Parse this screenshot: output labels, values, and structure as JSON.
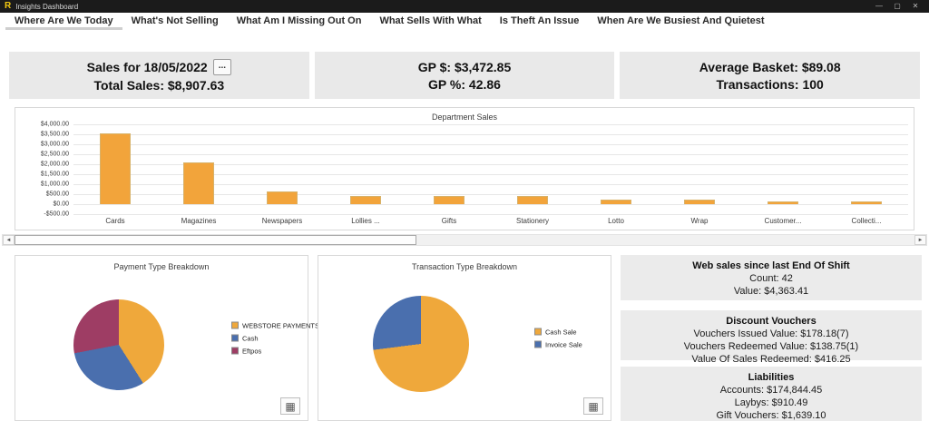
{
  "window": {
    "title": "Insights Dashboard",
    "logo": "R",
    "minimize": "—",
    "maximize": "▢",
    "close": "✕"
  },
  "tabs": [
    {
      "label": "Where Are We Today",
      "selected": true
    },
    {
      "label": "What's Not Selling",
      "selected": false
    },
    {
      "label": "What Am I Missing Out On",
      "selected": false
    },
    {
      "label": "What Sells With What",
      "selected": false
    },
    {
      "label": "Is Theft An Issue",
      "selected": false
    },
    {
      "label": "When Are We Busiest And Quietest",
      "selected": false
    }
  ],
  "summary_cards": [
    {
      "line1": "Sales for 18/05/2022",
      "menu_button": "...",
      "line2": "Total Sales: $8,907.63"
    },
    {
      "line1": "GP $: $3,472.85",
      "line2": "GP %: 42.86"
    },
    {
      "line1": "Average Basket: $89.08",
      "line2": "Transactions: 100"
    }
  ],
  "chart_data": [
    {
      "type": "bar",
      "title": "Department Sales",
      "categories": [
        "Cards",
        "Magazines",
        "Newspapers",
        "Lollies ...",
        "Gifts",
        "Stationery",
        "Lotto",
        "Wrap",
        "Customer...",
        "Collecti..."
      ],
      "values": [
        3550,
        2080,
        650,
        430,
        400,
        400,
        210,
        230,
        130,
        130
      ],
      "xlabel": "",
      "ylabel": "",
      "ylim": [
        -500,
        4000
      ],
      "ytick_step": 500,
      "ytick_labels": [
        "$4,000.00",
        "$3,500.00",
        "$3,000.00",
        "$2,500.00",
        "$2,000.00",
        "$1,500.00",
        "$1,000.00",
        "$500.00",
        "$0.00",
        "-$500.00"
      ],
      "bar_color": "#F2A43B",
      "grid": true,
      "legend": false
    },
    {
      "type": "pie",
      "title": "Payment Type Breakdown",
      "legend_position": "right",
      "slices": [
        {
          "label": "WEBSTORE PAYMENTS",
          "percent": 41,
          "color": "#EFA83B"
        },
        {
          "label": "Cash",
          "percent": 31,
          "color": "#4A6FAE"
        },
        {
          "label": "Eftpos",
          "percent": 28,
          "color": "#9E3D64"
        }
      ]
    },
    {
      "type": "pie",
      "title": "Transaction Type Breakdown",
      "legend_position": "right",
      "slices": [
        {
          "label": "Cash Sale",
          "percent": 73,
          "color": "#EFA83B"
        },
        {
          "label": "Invoice Sale",
          "percent": 27,
          "color": "#4A6FAE"
        }
      ]
    }
  ],
  "right_panels": [
    {
      "title": "Web sales since last End Of Shift",
      "lines": [
        "Count:  42",
        "Value:  $4,363.41"
      ]
    },
    {
      "title": "Discount Vouchers",
      "lines": [
        "Vouchers Issued Value: $178.18(7)",
        "Vouchers Redeemed Value: $138.75(1)",
        "Value Of Sales Redeemed:  $416.25"
      ]
    },
    {
      "title": "Liabilities",
      "lines": [
        "Accounts:  $174,844.45",
        "Laybys:  $910.49",
        "Gift Vouchers:  $1,639.10"
      ]
    }
  ],
  "scrollbar": {
    "left_arrow": "◄",
    "right_arrow": "►",
    "thumb_left_pct": 1.3,
    "thumb_width_pct": 43.5
  },
  "icons": {
    "grid_button": "▦"
  },
  "colors": {
    "titlebar": "#1b1b1b",
    "logo": "#f2c811",
    "panel_gray": "#ebebeb",
    "card_gray": "#e9e9e9",
    "bar_orange": "#F2A43B",
    "pie_blue": "#4A6FAE",
    "pie_maroon": "#9E3D64",
    "border": "#d8d8d8"
  }
}
